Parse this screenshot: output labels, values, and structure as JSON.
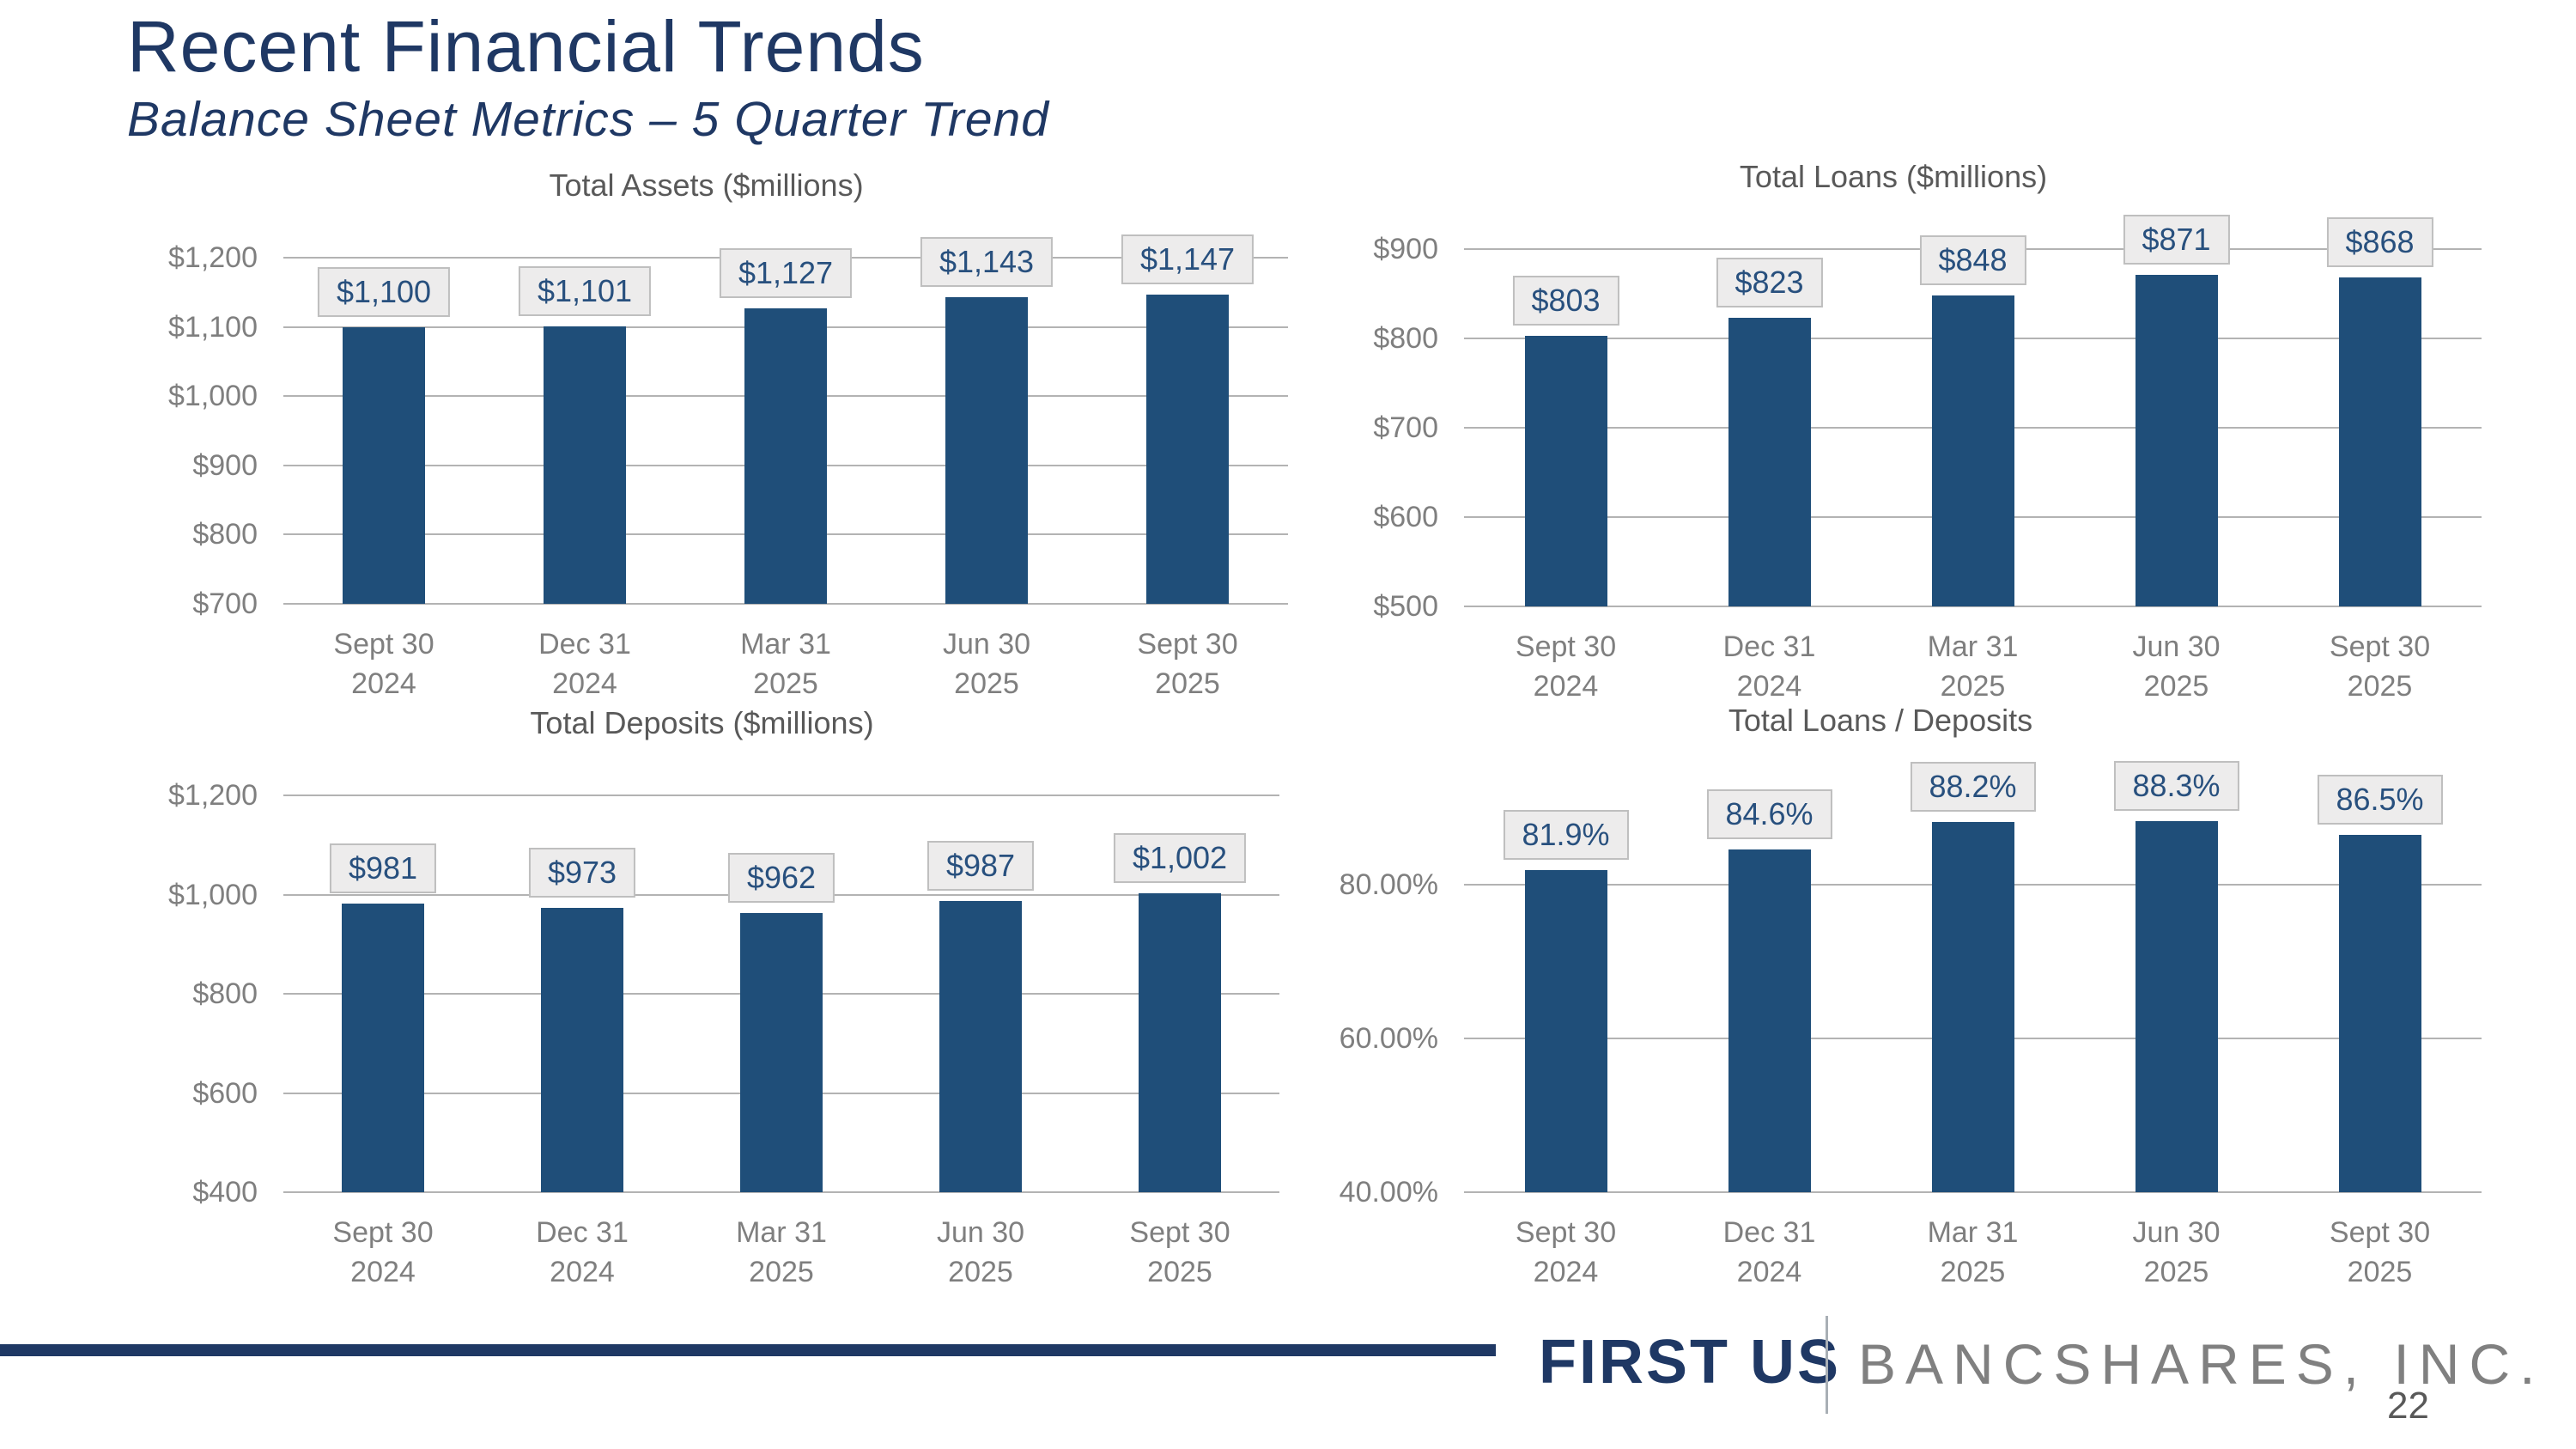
{
  "header": {
    "title": "Recent Financial Trends",
    "subtitle": "Balance Sheet Metrics – 5 Quarter Trend"
  },
  "chart_data": [
    {
      "type": "bar",
      "title": "Total Assets ($millions)",
      "categories": [
        [
          "Sept 30",
          "2024"
        ],
        [
          "Dec 31",
          "2024"
        ],
        [
          "Mar 31",
          "2025"
        ],
        [
          "Jun 30",
          "2025"
        ],
        [
          "Sept 30",
          "2025"
        ]
      ],
      "values": [
        1100,
        1101,
        1127,
        1143,
        1147
      ],
      "data_labels": [
        "$1,100",
        "$1,101",
        "$1,127",
        "$1,143",
        "$1,147"
      ],
      "ylim": [
        700,
        1200
      ],
      "yticks": [
        {
          "value": 700,
          "label": "$700"
        },
        {
          "value": 800,
          "label": "$800"
        },
        {
          "value": 900,
          "label": "$900"
        },
        {
          "value": 1000,
          "label": "$1,000"
        },
        {
          "value": 1100,
          "label": "$1,100"
        },
        {
          "value": 1200,
          "label": "$1,200"
        }
      ],
      "grid": true,
      "legend_position": "none"
    },
    {
      "type": "bar",
      "title": "Total Loans ($millions)",
      "categories": [
        [
          "Sept 30",
          "2024"
        ],
        [
          "Dec 31",
          "2024"
        ],
        [
          "Mar 31",
          "2025"
        ],
        [
          "Jun 30",
          "2025"
        ],
        [
          "Sept 30",
          "2025"
        ]
      ],
      "values": [
        803,
        823,
        848,
        871,
        868
      ],
      "data_labels": [
        "$803",
        "$823",
        "$848",
        "$871",
        "$868"
      ],
      "ylim": [
        500,
        900
      ],
      "yticks": [
        {
          "value": 500,
          "label": "$500"
        },
        {
          "value": 600,
          "label": "$600"
        },
        {
          "value": 700,
          "label": "$700"
        },
        {
          "value": 800,
          "label": "$800"
        },
        {
          "value": 900,
          "label": "$900"
        }
      ],
      "grid": true,
      "legend_position": "none"
    },
    {
      "type": "bar",
      "title": "Total Deposits ($millions)",
      "categories": [
        [
          "Sept 30",
          "2024"
        ],
        [
          "Dec 31",
          "2024"
        ],
        [
          "Mar 31",
          "2025"
        ],
        [
          "Jun 30",
          "2025"
        ],
        [
          "Sept 30",
          "2025"
        ]
      ],
      "values": [
        981,
        973,
        962,
        987,
        1002
      ],
      "data_labels": [
        "$981",
        "$973",
        "$962",
        "$987",
        "$1,002"
      ],
      "ylim": [
        400,
        1200
      ],
      "yticks": [
        {
          "value": 400,
          "label": "$400"
        },
        {
          "value": 600,
          "label": "$600"
        },
        {
          "value": 800,
          "label": "$800"
        },
        {
          "value": 1000,
          "label": "$1,000"
        },
        {
          "value": 1200,
          "label": "$1,200"
        }
      ],
      "grid": true,
      "legend_position": "none"
    },
    {
      "type": "bar",
      "title": "Total Loans / Deposits",
      "categories": [
        [
          "Sept 30",
          "2024"
        ],
        [
          "Dec 31",
          "2024"
        ],
        [
          "Mar 31",
          "2025"
        ],
        [
          "Jun 30",
          "2025"
        ],
        [
          "Sept 30",
          "2025"
        ]
      ],
      "values": [
        81.9,
        84.6,
        88.2,
        88.3,
        86.5
      ],
      "data_labels": [
        "81.9%",
        "84.6%",
        "88.2%",
        "88.3%",
        "86.5%"
      ],
      "ylim": [
        40,
        92
      ],
      "yticks": [
        {
          "value": 40,
          "label": "40.00%"
        },
        {
          "value": 60,
          "label": "60.00%"
        },
        {
          "value": 80,
          "label": "80.00%"
        }
      ],
      "grid": true,
      "legend_position": "none"
    }
  ],
  "footer": {
    "brand_primary": "FIRST US",
    "brand_secondary": "BANCSHARES, INC.",
    "page_number": "22"
  },
  "colors": {
    "title_navy": "#1F3864",
    "bar_fill": "#1F4E79",
    "chart_title_gray": "#595959",
    "axis_gray": "#7F7F7F",
    "gridline_gray": "#B3B3B3",
    "label_box_bg": "#EDECEC",
    "label_box_border": "#BFBFBF",
    "label_text_blue": "#28507E",
    "brand_secondary_gray": "#808080",
    "divider_gray": "#A9AFB5"
  }
}
